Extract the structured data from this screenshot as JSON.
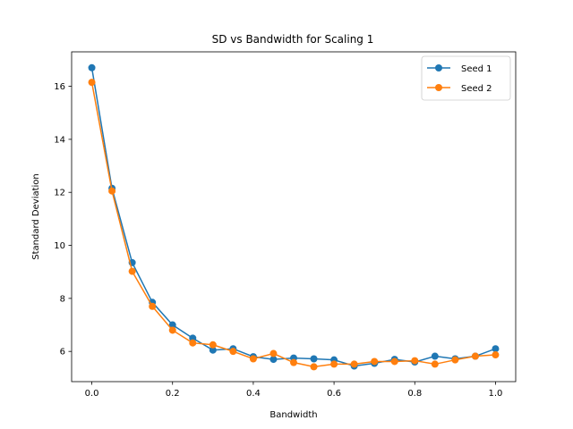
{
  "chart_data": {
    "type": "line",
    "title": "SD vs Bandwidth for Scaling 1",
    "xlabel": "Bandwidth",
    "ylabel": "Standard Deviation",
    "xlim": [
      -0.05,
      1.05
    ],
    "ylim": [
      4.86,
      17.3
    ],
    "xticks": [
      0.0,
      0.2,
      0.4,
      0.6,
      0.8,
      1.0
    ],
    "xtick_labels": [
      "0.0",
      "0.2",
      "0.4",
      "0.6",
      "0.8",
      "1.0"
    ],
    "yticks": [
      6,
      8,
      10,
      12,
      14,
      16
    ],
    "ytick_labels": [
      "6",
      "8",
      "10",
      "12",
      "14",
      "16"
    ],
    "grid": false,
    "legend_position": "top-right",
    "x": [
      0.0,
      0.05,
      0.1,
      0.15,
      0.2,
      0.25,
      0.3,
      0.35,
      0.4,
      0.45,
      0.5,
      0.55,
      0.6,
      0.65,
      0.7,
      0.75,
      0.8,
      0.85,
      0.9,
      0.95,
      1.0
    ],
    "series": [
      {
        "name": "Seed 1",
        "color": "#1f77b4",
        "values": [
          16.7,
          12.15,
          9.35,
          7.85,
          7.0,
          6.5,
          6.05,
          6.1,
          5.8,
          5.7,
          5.75,
          5.72,
          5.68,
          5.45,
          5.55,
          5.7,
          5.6,
          5.82,
          5.72,
          5.82,
          6.1
        ]
      },
      {
        "name": "Seed 2",
        "color": "#ff7f0e",
        "values": [
          16.15,
          12.05,
          9.02,
          7.7,
          6.8,
          6.32,
          6.25,
          6.0,
          5.72,
          5.92,
          5.58,
          5.42,
          5.52,
          5.52,
          5.62,
          5.62,
          5.65,
          5.52,
          5.68,
          5.82,
          5.87
        ]
      }
    ]
  }
}
